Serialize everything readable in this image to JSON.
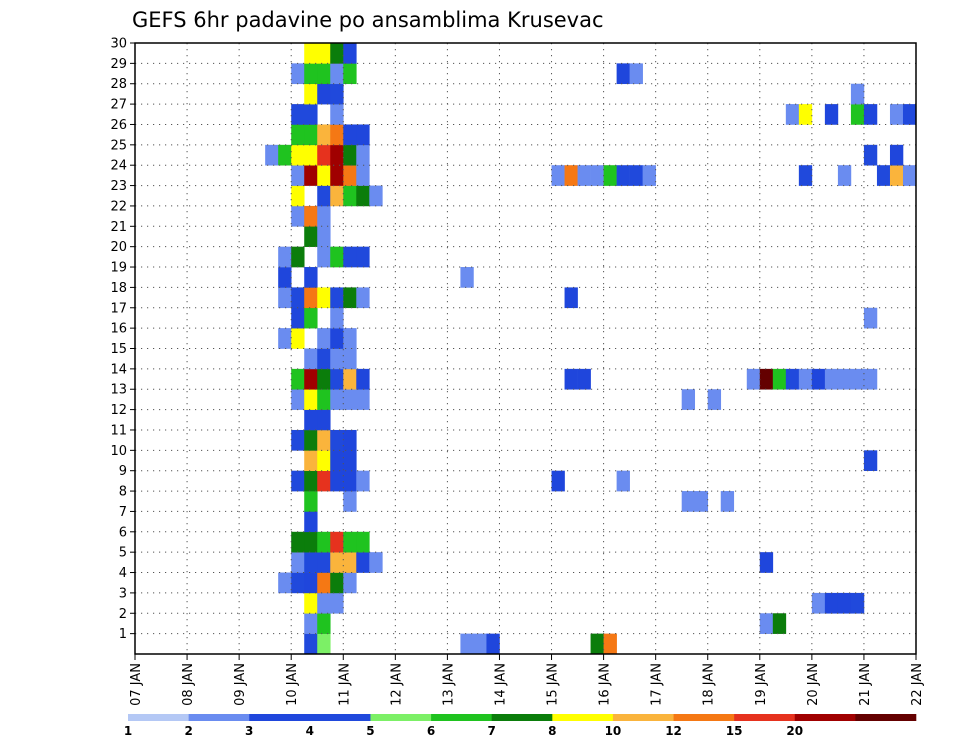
{
  "chart_data": {
    "type": "heatmap",
    "title": "GEFS 6hr padavine po ansamblima Krusevac",
    "xlabel": "",
    "ylabel": "",
    "x_ticks": [
      "07 JAN",
      "08 JAN",
      "09 JAN",
      "10 JAN",
      "11 JAN",
      "12 JAN",
      "13 JAN",
      "14 JAN",
      "15 JAN",
      "16 JAN",
      "17 JAN",
      "18 JAN",
      "19 JAN",
      "20 JAN",
      "21 JAN",
      "22 JAN"
    ],
    "y_ticks": [
      1,
      2,
      3,
      4,
      5,
      6,
      7,
      8,
      9,
      10,
      11,
      12,
      13,
      14,
      15,
      16,
      17,
      18,
      19,
      20,
      21,
      22,
      23,
      24,
      25,
      26,
      27,
      28,
      29,
      30
    ],
    "x_range_days": [
      7,
      22
    ],
    "y_range": [
      0,
      30
    ],
    "grid": true,
    "legend_placement": "bottom",
    "legend": {
      "labels": [
        "1",
        "2",
        "3",
        "4",
        "5",
        "6",
        "7",
        "8",
        "10",
        "12",
        "15",
        "20"
      ],
      "colors": [
        "#b4c8f5",
        "#6a8cf0",
        "#1f46dc",
        "#2049dc",
        "#7cf066",
        "#1fc31f",
        "#0b7d0b",
        "#ffff00",
        "#fab43c",
        "#f57814",
        "#e6321e",
        "#a00000",
        "#640000"
      ]
    },
    "cells": [
      [
        10.25,
        0,
        3
      ],
      [
        10.5,
        0,
        4
      ],
      [
        13.25,
        0,
        1
      ],
      [
        13.5,
        0,
        1
      ],
      [
        13.75,
        0,
        2
      ],
      [
        15.75,
        0,
        6
      ],
      [
        16.0,
        0,
        9
      ],
      [
        10.25,
        1,
        1
      ],
      [
        10.5,
        1,
        5
      ],
      [
        19.0,
        1,
        1
      ],
      [
        19.25,
        1,
        6
      ],
      [
        10.25,
        2,
        7
      ],
      [
        10.5,
        2,
        1
      ],
      [
        10.75,
        2,
        1
      ],
      [
        20.0,
        2,
        1
      ],
      [
        20.25,
        2,
        2
      ],
      [
        20.5,
        2,
        2
      ],
      [
        20.75,
        2,
        3
      ],
      [
        9.75,
        3,
        1
      ],
      [
        10.0,
        3,
        3
      ],
      [
        10.25,
        3,
        2
      ],
      [
        10.5,
        3,
        9
      ],
      [
        10.75,
        3,
        6
      ],
      [
        11.0,
        3,
        1
      ],
      [
        10.0,
        4,
        1
      ],
      [
        10.25,
        4,
        3
      ],
      [
        10.5,
        4,
        3
      ],
      [
        10.75,
        4,
        8
      ],
      [
        11.0,
        4,
        8
      ],
      [
        11.25,
        4,
        2
      ],
      [
        11.5,
        4,
        1
      ],
      [
        19.0,
        4,
        2
      ],
      [
        10.0,
        5,
        6
      ],
      [
        10.25,
        5,
        6
      ],
      [
        10.5,
        5,
        5
      ],
      [
        10.75,
        5,
        10
      ],
      [
        11.0,
        5,
        5
      ],
      [
        11.25,
        5,
        5
      ],
      [
        10.25,
        6,
        2
      ],
      [
        10.25,
        7,
        5
      ],
      [
        11.0,
        7,
        1
      ],
      [
        17.5,
        7,
        1
      ],
      [
        17.75,
        7,
        1
      ],
      [
        18.25,
        7,
        1
      ],
      [
        10.0,
        8,
        3
      ],
      [
        10.25,
        8,
        6
      ],
      [
        10.5,
        8,
        10
      ],
      [
        10.75,
        8,
        2
      ],
      [
        11.0,
        8,
        2
      ],
      [
        11.25,
        8,
        1
      ],
      [
        15.0,
        8,
        2
      ],
      [
        16.25,
        8,
        1
      ],
      [
        10.25,
        9,
        8
      ],
      [
        10.5,
        9,
        7
      ],
      [
        10.75,
        9,
        2
      ],
      [
        11.0,
        9,
        2
      ],
      [
        21.0,
        9,
        3
      ],
      [
        10.0,
        10,
        3
      ],
      [
        10.25,
        10,
        6
      ],
      [
        10.5,
        10,
        8
      ],
      [
        10.75,
        10,
        3
      ],
      [
        11.0,
        10,
        2
      ],
      [
        10.25,
        11,
        2
      ],
      [
        10.5,
        11,
        2
      ],
      [
        10.0,
        12,
        1
      ],
      [
        10.25,
        12,
        7
      ],
      [
        10.5,
        12,
        5
      ],
      [
        10.75,
        12,
        1
      ],
      [
        11.0,
        12,
        1
      ],
      [
        11.25,
        12,
        1
      ],
      [
        17.5,
        12,
        1
      ],
      [
        18.0,
        12,
        1
      ],
      [
        10.0,
        13,
        5
      ],
      [
        10.25,
        13,
        11
      ],
      [
        10.5,
        13,
        6
      ],
      [
        10.75,
        13,
        3
      ],
      [
        11.0,
        13,
        8
      ],
      [
        11.25,
        13,
        2
      ],
      [
        15.25,
        13,
        2
      ],
      [
        15.5,
        13,
        2
      ],
      [
        18.75,
        13,
        1
      ],
      [
        19.0,
        13,
        12
      ],
      [
        19.25,
        13,
        5
      ],
      [
        19.5,
        13,
        3
      ],
      [
        19.75,
        13,
        1
      ],
      [
        20.0,
        13,
        2
      ],
      [
        20.25,
        13,
        1
      ],
      [
        20.5,
        13,
        1
      ],
      [
        20.75,
        13,
        1
      ],
      [
        21.0,
        13,
        1
      ],
      [
        10.25,
        14,
        1
      ],
      [
        10.5,
        14,
        3
      ],
      [
        10.75,
        14,
        1
      ],
      [
        11.0,
        14,
        1
      ],
      [
        9.75,
        15,
        1
      ],
      [
        10.0,
        15,
        7
      ],
      [
        10.5,
        15,
        1
      ],
      [
        10.75,
        15,
        2
      ],
      [
        11.0,
        15,
        1
      ],
      [
        10.0,
        16,
        2
      ],
      [
        10.25,
        16,
        5
      ],
      [
        10.75,
        16,
        1
      ],
      [
        21.0,
        16,
        1
      ],
      [
        9.75,
        17,
        1
      ],
      [
        10.0,
        17,
        3
      ],
      [
        10.25,
        17,
        9
      ],
      [
        10.5,
        17,
        7
      ],
      [
        10.75,
        17,
        3
      ],
      [
        11.0,
        17,
        6
      ],
      [
        11.25,
        17,
        1
      ],
      [
        15.25,
        17,
        2
      ],
      [
        9.75,
        18,
        2
      ],
      [
        10.25,
        18,
        2
      ],
      [
        13.25,
        18,
        1
      ],
      [
        9.75,
        19,
        1
      ],
      [
        10.0,
        19,
        6
      ],
      [
        10.5,
        19,
        1
      ],
      [
        10.75,
        19,
        5
      ],
      [
        11.0,
        19,
        3
      ],
      [
        11.25,
        19,
        3
      ],
      [
        10.25,
        20,
        6
      ],
      [
        10.5,
        20,
        1
      ],
      [
        10.0,
        21,
        1
      ],
      [
        10.25,
        21,
        9
      ],
      [
        10.5,
        21,
        1
      ],
      [
        10.0,
        22,
        7
      ],
      [
        10.5,
        22,
        3
      ],
      [
        10.75,
        22,
        8
      ],
      [
        11.0,
        22,
        5
      ],
      [
        11.25,
        22,
        6
      ],
      [
        11.5,
        22,
        1
      ],
      [
        10.0,
        23,
        1
      ],
      [
        10.25,
        23,
        11
      ],
      [
        10.5,
        23,
        7
      ],
      [
        10.75,
        23,
        11
      ],
      [
        11.0,
        23,
        9
      ],
      [
        11.25,
        23,
        1
      ],
      [
        15.0,
        23,
        1
      ],
      [
        15.25,
        23,
        9
      ],
      [
        15.5,
        23,
        1
      ],
      [
        15.75,
        23,
        1
      ],
      [
        16.0,
        23,
        5
      ],
      [
        16.25,
        23,
        3
      ],
      [
        16.5,
        23,
        3
      ],
      [
        16.75,
        23,
        1
      ],
      [
        19.75,
        23,
        3
      ],
      [
        20.5,
        23,
        1
      ],
      [
        21.25,
        23,
        3
      ],
      [
        21.5,
        23,
        8
      ],
      [
        21.75,
        23,
        1
      ],
      [
        9.5,
        24,
        1
      ],
      [
        9.75,
        24,
        5
      ],
      [
        10.0,
        24,
        7
      ],
      [
        10.25,
        24,
        7
      ],
      [
        10.5,
        24,
        10
      ],
      [
        10.75,
        24,
        11
      ],
      [
        11.0,
        24,
        6
      ],
      [
        11.25,
        24,
        1
      ],
      [
        21.0,
        24,
        3
      ],
      [
        21.5,
        24,
        2
      ],
      [
        10.0,
        25,
        5
      ],
      [
        10.25,
        25,
        5
      ],
      [
        10.5,
        25,
        8
      ],
      [
        10.75,
        25,
        9
      ],
      [
        11.0,
        25,
        2
      ],
      [
        11.25,
        25,
        2
      ],
      [
        10.0,
        26,
        3
      ],
      [
        10.25,
        26,
        3
      ],
      [
        10.75,
        26,
        1
      ],
      [
        19.5,
        26,
        1
      ],
      [
        19.75,
        26,
        7
      ],
      [
        20.25,
        26,
        2
      ],
      [
        20.75,
        26,
        5
      ],
      [
        21.0,
        26,
        2
      ],
      [
        21.5,
        26,
        1
      ],
      [
        21.75,
        26,
        3
      ],
      [
        10.25,
        27,
        7
      ],
      [
        10.5,
        27,
        2
      ],
      [
        10.75,
        27,
        3
      ],
      [
        20.75,
        27,
        1
      ],
      [
        10.0,
        28,
        1
      ],
      [
        10.25,
        28,
        5
      ],
      [
        10.5,
        28,
        5
      ],
      [
        10.75,
        28,
        1
      ],
      [
        11.0,
        28,
        5
      ],
      [
        16.25,
        28,
        2
      ],
      [
        16.5,
        28,
        1
      ],
      [
        10.25,
        29,
        7
      ],
      [
        10.5,
        29,
        7
      ],
      [
        10.75,
        29,
        6
      ],
      [
        11.0,
        29,
        2
      ]
    ]
  }
}
